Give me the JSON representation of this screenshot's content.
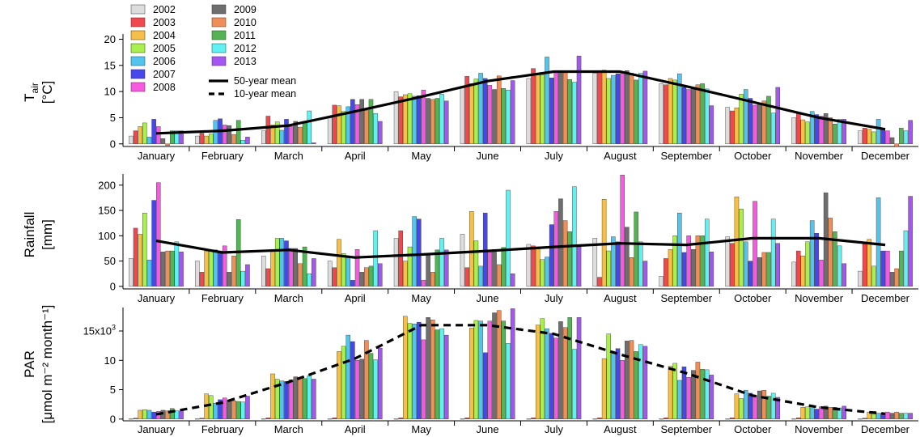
{
  "months": [
    "January",
    "February",
    "March",
    "April",
    "May",
    "June",
    "July",
    "August",
    "September",
    "October",
    "November",
    "December"
  ],
  "years": [
    "2002",
    "2003",
    "2004",
    "2005",
    "2006",
    "2007",
    "2008",
    "2009",
    "2010",
    "2011",
    "2012",
    "2013"
  ],
  "colors": [
    "#dddddd",
    "#f2474d",
    "#f6bf47",
    "#a9ef4d",
    "#52c5ef",
    "#4747ee",
    "#f55ae0",
    "#6e6e6e",
    "#ee8f59",
    "#54b354",
    "#5ff2f2",
    "#a456f1"
  ],
  "legend": {
    "years": [
      "2002",
      "2003",
      "2004",
      "2005",
      "2006",
      "2007",
      "2008",
      "2009",
      "2010",
      "2011",
      "2012",
      "2013"
    ],
    "mean50": "50-year mean",
    "mean10": "10-year mean"
  },
  "chart_data": [
    {
      "type": "bar",
      "ylabel_main": "T",
      "ylabel_sub": "air",
      "ylabel_unit": "[°C]",
      "ylim": [
        -0.5,
        21
      ],
      "yticks": [
        0,
        5,
        10,
        15,
        20
      ],
      "ytick_labels": [
        "0",
        "5",
        "10",
        "15",
        "20"
      ],
      "categories": [
        "January",
        "February",
        "March",
        "April",
        "May",
        "June",
        "July",
        "August",
        "September",
        "October",
        "November",
        "December"
      ],
      "series": [
        {
          "name": "2002",
          "values": [
            1.5,
            1.5,
            2.5,
            5,
            10,
            11,
            12.5,
            13.5,
            11.5,
            7,
            5,
            2.5
          ]
        },
        {
          "name": "2003",
          "values": [
            2.5,
            2,
            5.3,
            7.4,
            9,
            12.9,
            14.4,
            13.9,
            11.3,
            6.3,
            5.8,
            3
          ]
        },
        {
          "name": "2004",
          "values": [
            3.3,
            1.5,
            3.6,
            7.3,
            9.4,
            11.5,
            13.2,
            14.1,
            12.5,
            6.9,
            4.6,
            2.8
          ]
        },
        {
          "name": "2005",
          "values": [
            4,
            1.9,
            4.2,
            6.2,
            9.6,
            12.4,
            13.2,
            12.5,
            12.2,
            9.5,
            4.2,
            2.3
          ]
        },
        {
          "name": "2006",
          "values": [
            1.3,
            4.5,
            2.6,
            7.1,
            9.1,
            13.5,
            16.6,
            13.1,
            13.4,
            10.4,
            6.2,
            4.7
          ]
        },
        {
          "name": "2007",
          "values": [
            4.7,
            4.8,
            4.7,
            8.5,
            9.2,
            12.5,
            12.6,
            13.4,
            10.8,
            8.7,
            5.6,
            2.7
          ]
        },
        {
          "name": "2008",
          "values": [
            3.3,
            3.6,
            3.3,
            7.5,
            10.3,
            11.2,
            13.8,
            13.5,
            10.4,
            7.4,
            5.3,
            2.5
          ]
        },
        {
          "name": "2009",
          "values": [
            1,
            3.5,
            4.3,
            8.5,
            8.7,
            10.4,
            13.5,
            14.0,
            10.8,
            7.8,
            5.8,
            1.2
          ]
        },
        {
          "name": "2010",
          "values": [
            -0.3,
            1.8,
            3.2,
            6.4,
            8.5,
            13.0,
            14.0,
            13.5,
            11.3,
            8.2,
            5.0,
            -0.5
          ]
        },
        {
          "name": "2011",
          "values": [
            2.5,
            4.5,
            4.3,
            8.5,
            8.7,
            10.6,
            12.3,
            12.2,
            11.5,
            9.1,
            3.8,
            3.0
          ]
        },
        {
          "name": "2012",
          "values": [
            2.5,
            0.7,
            6.3,
            5.8,
            9.5,
            10.3,
            11.8,
            13.5,
            10.5,
            5.9,
            4.7,
            2.5
          ]
        },
        {
          "name": "2013",
          "values": [
            2.5,
            1.3,
            0.2,
            4.3,
            8.2,
            12.1,
            16.8,
            13.9,
            7.3,
            10.8,
            4.7,
            4.5
          ]
        }
      ],
      "mean50": [
        2.0,
        2.5,
        3.5,
        6.2,
        9.0,
        12.0,
        13.8,
        13.8,
        11.0,
        8.0,
        5.0,
        2.8
      ],
      "mean10": null
    },
    {
      "type": "bar",
      "ylabel_main": "Rainfall",
      "ylabel_unit": "[mm]",
      "ylim": [
        -5,
        222
      ],
      "yticks": [
        0,
        50,
        100,
        150,
        200
      ],
      "ytick_labels": [
        "0",
        "50",
        "100",
        "150",
        "200"
      ],
      "categories": [
        "January",
        "February",
        "March",
        "April",
        "May",
        "June",
        "July",
        "August",
        "September",
        "October",
        "November",
        "December"
      ],
      "series": [
        {
          "name": "2002",
          "values": [
            55,
            50,
            60,
            50,
            95,
            103,
            83,
            95,
            20,
            98,
            48,
            30
          ]
        },
        {
          "name": "2003",
          "values": [
            115,
            28,
            35,
            37,
            110,
            37,
            80,
            18,
            55,
            85,
            70,
            88
          ]
        },
        {
          "name": "2004",
          "values": [
            103,
            70,
            70,
            93,
            50,
            148,
            78,
            172,
            73,
            177,
            60,
            93
          ]
        },
        {
          "name": "2005",
          "values": [
            145,
            70,
            95,
            65,
            78,
            90,
            53,
            70,
            100,
            153,
            88,
            40
          ]
        },
        {
          "name": "2006",
          "values": [
            52,
            72,
            95,
            60,
            138,
            40,
            58,
            98,
            145,
            88,
            130,
            175
          ]
        },
        {
          "name": "2007",
          "values": [
            170,
            70,
            90,
            12,
            133,
            145,
            122,
            88,
            67,
            50,
            105,
            70
          ]
        },
        {
          "name": "2008",
          "values": [
            205,
            80,
            75,
            73,
            12,
            72,
            148,
            220,
            100,
            168,
            52,
            70
          ]
        },
        {
          "name": "2009",
          "values": [
            68,
            28,
            75,
            28,
            65,
            73,
            173,
            117,
            73,
            57,
            185,
            28
          ]
        },
        {
          "name": "2010",
          "values": [
            70,
            60,
            45,
            37,
            28,
            43,
            130,
            57,
            100,
            67,
            135,
            35
          ]
        },
        {
          "name": "2011",
          "values": [
            70,
            132,
            78,
            40,
            72,
            77,
            108,
            147,
            100,
            67,
            108,
            70
          ]
        },
        {
          "name": "2012",
          "values": [
            88,
            30,
            25,
            110,
            95,
            190,
            197,
            88,
            133,
            133,
            80,
            110
          ]
        },
        {
          "name": "2013",
          "values": [
            68,
            43,
            55,
            45,
            72,
            25,
            78,
            50,
            68,
            85,
            45,
            178
          ]
        }
      ],
      "mean50": [
        90,
        67,
        72,
        57,
        63,
        70,
        78,
        85,
        82,
        95,
        95,
        82
      ],
      "mean10": null
    },
    {
      "type": "bar",
      "ylabel_main": "PAR",
      "ylabel_unit": "[μmol m⁻² month⁻¹]",
      "ylim": [
        -300,
        19000
      ],
      "yticks": [
        0,
        5000,
        10000,
        15000
      ],
      "ytick_labels": [
        "0",
        "5",
        "10",
        "15x10"
      ],
      "ytick_exp": "3",
      "categories": [
        "January",
        "February",
        "March",
        "April",
        "May",
        "June",
        "July",
        "August",
        "September",
        "October",
        "November",
        "December"
      ],
      "series": [
        {
          "name": "2002",
          "values": [
            50,
            50,
            50,
            50,
            50,
            50,
            50,
            50,
            50,
            50,
            50,
            50
          ]
        },
        {
          "name": "2003",
          "values": [
            150,
            150,
            200,
            200,
            200,
            200,
            200,
            200,
            200,
            200,
            200,
            150
          ]
        },
        {
          "name": "2004",
          "values": [
            1500,
            4300,
            7700,
            11500,
            17500,
            15500,
            16000,
            10300,
            9000,
            4300,
            2000,
            1200
          ]
        },
        {
          "name": "2005",
          "values": [
            1600,
            4000,
            6800,
            12400,
            16300,
            16800,
            17100,
            14500,
            9500,
            3500,
            2100,
            1300
          ]
        },
        {
          "name": "2006",
          "values": [
            1500,
            2700,
            6500,
            14300,
            16200,
            16700,
            15400,
            11200,
            6600,
            4900,
            2100,
            1000
          ]
        },
        {
          "name": "2007",
          "values": [
            1200,
            3300,
            6400,
            13200,
            16500,
            11300,
            14600,
            12000,
            8900,
            4400,
            1700,
            1000
          ]
        },
        {
          "name": "2008",
          "values": [
            1300,
            3600,
            6700,
            10000,
            13500,
            16700,
            13800,
            10000,
            7100,
            4000,
            2100,
            1200
          ]
        },
        {
          "name": "2009",
          "values": [
            1500,
            3200,
            7200,
            10200,
            17300,
            18100,
            16600,
            13300,
            8300,
            4800,
            2200,
            1000
          ]
        },
        {
          "name": "2010",
          "values": [
            1400,
            3100,
            7000,
            13400,
            16900,
            18500,
            15600,
            13400,
            9700,
            4900,
            2000,
            1200
          ]
        },
        {
          "name": "2011",
          "values": [
            1800,
            3000,
            6900,
            11200,
            15200,
            16700,
            17300,
            11500,
            8500,
            3900,
            2000,
            1000
          ]
        },
        {
          "name": "2012",
          "values": [
            1400,
            2900,
            7400,
            10100,
            15400,
            12900,
            11900,
            12700,
            8400,
            4400,
            1900,
            1000
          ]
        },
        {
          "name": "2013",
          "values": [
            1400,
            3900,
            6800,
            12100,
            14300,
            18800,
            17300,
            12400,
            7500,
            3700,
            2200,
            1000
          ]
        }
      ],
      "mean50": null,
      "mean10": [
        800,
        2800,
        6300,
        10300,
        16000,
        16000,
        14500,
        11000,
        7800,
        4000,
        2000,
        900
      ]
    }
  ]
}
